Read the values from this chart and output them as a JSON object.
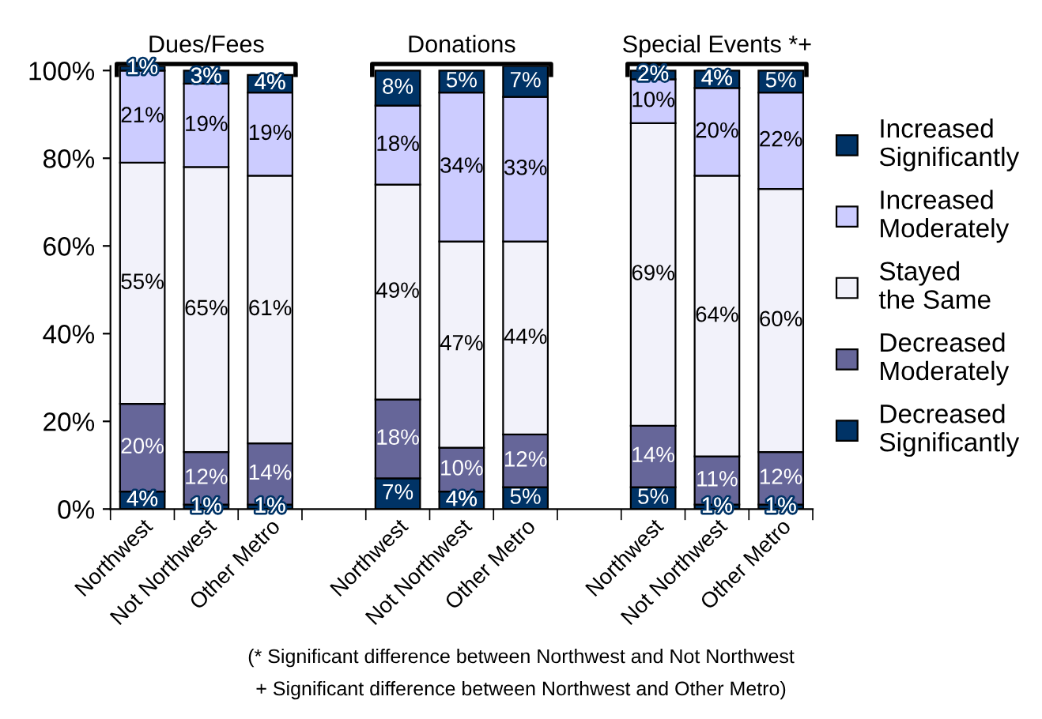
{
  "chart_data": {
    "type": "bar",
    "stacked": true,
    "legend": "right",
    "grid": false,
    "categories": [
      "Northwest",
      "Not Northwest",
      "Other Metro",
      null,
      "Northwest",
      "Not Northwest",
      "Other Metro",
      null,
      "Northwest",
      "Not Northwest",
      "Other Metro"
    ],
    "series": [
      {
        "name": "Decreased Significantly",
        "color": "#003366",
        "values": [
          4,
          1,
          1,
          null,
          7,
          4,
          5,
          null,
          5,
          1,
          1
        ],
        "value_labels": [
          "4%",
          "1%",
          "1%",
          null,
          "7%",
          "4%",
          "5%",
          null,
          "5%",
          "1%",
          "1%"
        ]
      },
      {
        "name": "Decreased Moderately",
        "color": "#666699",
        "values": [
          20,
          12,
          14,
          null,
          18,
          10,
          12,
          null,
          14,
          11,
          12
        ],
        "value_labels": [
          "20%",
          "12%",
          "14%",
          null,
          "18%",
          "10%",
          "12%",
          null,
          "14%",
          "11%",
          "12%"
        ]
      },
      {
        "name": "Stayed the Same",
        "color": "#f2f2fa",
        "values": [
          55,
          65,
          61,
          null,
          49,
          47,
          44,
          null,
          69,
          64,
          60
        ],
        "value_labels": [
          "55%",
          "65%",
          "61%",
          null,
          "49%",
          "47%",
          "44%",
          null,
          "69%",
          "64%",
          "60%"
        ]
      },
      {
        "name": "Increased Moderately",
        "color": "#ccccff",
        "values": [
          21,
          19,
          19,
          null,
          18,
          34,
          33,
          null,
          10,
          20,
          22
        ],
        "value_labels": [
          "21%",
          "19%",
          "19%",
          null,
          "18%",
          "34%",
          "33%",
          null,
          "10%",
          "20%",
          "22%"
        ]
      },
      {
        "name": "Increased Significantly",
        "color": "#003366",
        "values": [
          1,
          3,
          4,
          null,
          8,
          5,
          7,
          null,
          2,
          4,
          5
        ],
        "value_labels": [
          "1%",
          "3%",
          "4%",
          null,
          "8%",
          "5%",
          "7%",
          null,
          "2%",
          "4%",
          "5%"
        ]
      }
    ],
    "ylim": [
      0,
      101
    ],
    "yticks": [
      {
        "value": 0,
        "label": "0%"
      },
      {
        "value": 20,
        "label": "20%"
      },
      {
        "value": 40,
        "label": "40%"
      },
      {
        "value": 60,
        "label": "60%"
      },
      {
        "value": 80,
        "label": "80%"
      },
      {
        "value": 100,
        "label": "100%"
      }
    ],
    "annotations": [
      "Dues/Fees",
      "Donations",
      "Special Events *+",
      "(* Significant difference between Northwest and Not Northwest",
      "+ Significant difference between Northwest and Other Metro)"
    ]
  }
}
